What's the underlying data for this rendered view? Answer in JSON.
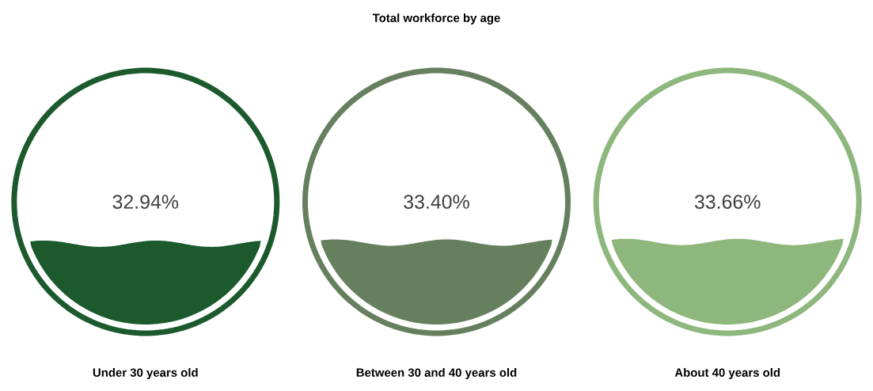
{
  "chart_data": {
    "type": "other",
    "title": "Total workforce by age",
    "categories": [
      "Under 30 years old",
      "Between 30 and 40 years old",
      "About 40 years old"
    ],
    "values": [
      32.94,
      33.4,
      33.66
    ],
    "value_labels": [
      "32.94%",
      "33.40%",
      "33.66%"
    ],
    "colors": [
      "#1c5a2e",
      "#66805f",
      "#8db77c"
    ]
  }
}
